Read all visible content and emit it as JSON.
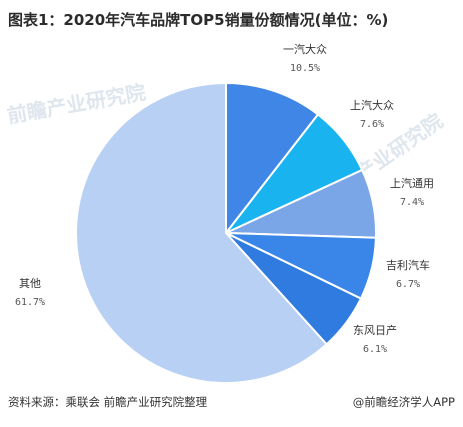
{
  "title": "图表1：2020年汽车品牌TOP5销量份额情况(单位：%)",
  "footer": {
    "source": "资料来源：乘联会 前瞻产业研究院整理",
    "brand": "@前瞻经济学人APP"
  },
  "watermark": "前瞻产业研究院",
  "colors": {
    "其他": "#b7d0f3",
    "一汽大众": "#3f86e6",
    "上汽大众": "#19b4f0",
    "上汽通用": "#7aa6e8",
    "吉利汽车": "#3a86e8",
    "东风日产": "#2f7be0"
  },
  "chart_data": {
    "type": "pie",
    "title": "图表1：2020年汽车品牌TOP5销量份额情况(单位：%)",
    "unit": "%",
    "slices": [
      {
        "name": "一汽大众",
        "value": 10.5,
        "label": "10.5%"
      },
      {
        "name": "上汽大众",
        "value": 7.6,
        "label": "7.6%"
      },
      {
        "name": "上汽通用",
        "value": 7.4,
        "label": "7.4%"
      },
      {
        "name": "吉利汽车",
        "value": 6.7,
        "label": "6.7%"
      },
      {
        "name": "东风日产",
        "value": 6.1,
        "label": "6.1%"
      },
      {
        "name": "其他",
        "value": 61.7,
        "label": "61.7%"
      }
    ]
  }
}
